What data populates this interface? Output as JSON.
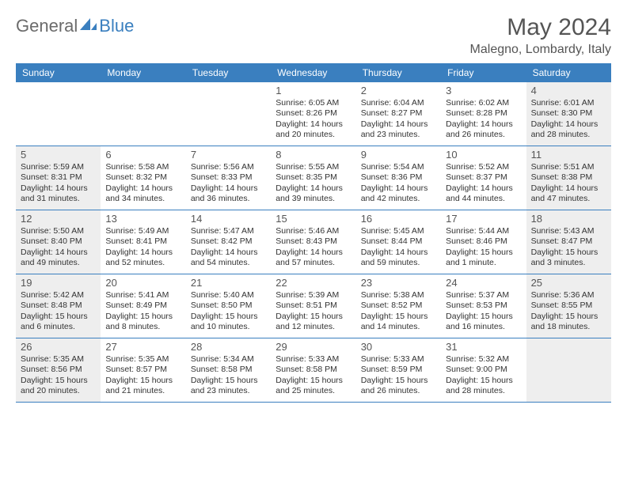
{
  "logo": {
    "text1": "General",
    "text2": "Blue"
  },
  "title": "May 2024",
  "location": "Malegno, Lombardy, Italy",
  "colors": {
    "header_bg": "#3a7fbf",
    "header_text": "#ffffff",
    "shade_bg": "#eeeeee",
    "border": "#3a7fbf",
    "title_color": "#555555",
    "logo_gray": "#6b6b6b",
    "logo_blue": "#3a7fbf"
  },
  "day_headers": [
    "Sunday",
    "Monday",
    "Tuesday",
    "Wednesday",
    "Thursday",
    "Friday",
    "Saturday"
  ],
  "weeks": [
    [
      {
        "num": "",
        "sunrise": "",
        "sunset": "",
        "daylight1": "",
        "daylight2": "",
        "shaded": false
      },
      {
        "num": "",
        "sunrise": "",
        "sunset": "",
        "daylight1": "",
        "daylight2": "",
        "shaded": false
      },
      {
        "num": "",
        "sunrise": "",
        "sunset": "",
        "daylight1": "",
        "daylight2": "",
        "shaded": false
      },
      {
        "num": "1",
        "sunrise": "Sunrise: 6:05 AM",
        "sunset": "Sunset: 8:26 PM",
        "daylight1": "Daylight: 14 hours",
        "daylight2": "and 20 minutes.",
        "shaded": false
      },
      {
        "num": "2",
        "sunrise": "Sunrise: 6:04 AM",
        "sunset": "Sunset: 8:27 PM",
        "daylight1": "Daylight: 14 hours",
        "daylight2": "and 23 minutes.",
        "shaded": false
      },
      {
        "num": "3",
        "sunrise": "Sunrise: 6:02 AM",
        "sunset": "Sunset: 8:28 PM",
        "daylight1": "Daylight: 14 hours",
        "daylight2": "and 26 minutes.",
        "shaded": false
      },
      {
        "num": "4",
        "sunrise": "Sunrise: 6:01 AM",
        "sunset": "Sunset: 8:30 PM",
        "daylight1": "Daylight: 14 hours",
        "daylight2": "and 28 minutes.",
        "shaded": true
      }
    ],
    [
      {
        "num": "5",
        "sunrise": "Sunrise: 5:59 AM",
        "sunset": "Sunset: 8:31 PM",
        "daylight1": "Daylight: 14 hours",
        "daylight2": "and 31 minutes.",
        "shaded": true
      },
      {
        "num": "6",
        "sunrise": "Sunrise: 5:58 AM",
        "sunset": "Sunset: 8:32 PM",
        "daylight1": "Daylight: 14 hours",
        "daylight2": "and 34 minutes.",
        "shaded": false
      },
      {
        "num": "7",
        "sunrise": "Sunrise: 5:56 AM",
        "sunset": "Sunset: 8:33 PM",
        "daylight1": "Daylight: 14 hours",
        "daylight2": "and 36 minutes.",
        "shaded": false
      },
      {
        "num": "8",
        "sunrise": "Sunrise: 5:55 AM",
        "sunset": "Sunset: 8:35 PM",
        "daylight1": "Daylight: 14 hours",
        "daylight2": "and 39 minutes.",
        "shaded": false
      },
      {
        "num": "9",
        "sunrise": "Sunrise: 5:54 AM",
        "sunset": "Sunset: 8:36 PM",
        "daylight1": "Daylight: 14 hours",
        "daylight2": "and 42 minutes.",
        "shaded": false
      },
      {
        "num": "10",
        "sunrise": "Sunrise: 5:52 AM",
        "sunset": "Sunset: 8:37 PM",
        "daylight1": "Daylight: 14 hours",
        "daylight2": "and 44 minutes.",
        "shaded": false
      },
      {
        "num": "11",
        "sunrise": "Sunrise: 5:51 AM",
        "sunset": "Sunset: 8:38 PM",
        "daylight1": "Daylight: 14 hours",
        "daylight2": "and 47 minutes.",
        "shaded": true
      }
    ],
    [
      {
        "num": "12",
        "sunrise": "Sunrise: 5:50 AM",
        "sunset": "Sunset: 8:40 PM",
        "daylight1": "Daylight: 14 hours",
        "daylight2": "and 49 minutes.",
        "shaded": true
      },
      {
        "num": "13",
        "sunrise": "Sunrise: 5:49 AM",
        "sunset": "Sunset: 8:41 PM",
        "daylight1": "Daylight: 14 hours",
        "daylight2": "and 52 minutes.",
        "shaded": false
      },
      {
        "num": "14",
        "sunrise": "Sunrise: 5:47 AM",
        "sunset": "Sunset: 8:42 PM",
        "daylight1": "Daylight: 14 hours",
        "daylight2": "and 54 minutes.",
        "shaded": false
      },
      {
        "num": "15",
        "sunrise": "Sunrise: 5:46 AM",
        "sunset": "Sunset: 8:43 PM",
        "daylight1": "Daylight: 14 hours",
        "daylight2": "and 57 minutes.",
        "shaded": false
      },
      {
        "num": "16",
        "sunrise": "Sunrise: 5:45 AM",
        "sunset": "Sunset: 8:44 PM",
        "daylight1": "Daylight: 14 hours",
        "daylight2": "and 59 minutes.",
        "shaded": false
      },
      {
        "num": "17",
        "sunrise": "Sunrise: 5:44 AM",
        "sunset": "Sunset: 8:46 PM",
        "daylight1": "Daylight: 15 hours",
        "daylight2": "and 1 minute.",
        "shaded": false
      },
      {
        "num": "18",
        "sunrise": "Sunrise: 5:43 AM",
        "sunset": "Sunset: 8:47 PM",
        "daylight1": "Daylight: 15 hours",
        "daylight2": "and 3 minutes.",
        "shaded": true
      }
    ],
    [
      {
        "num": "19",
        "sunrise": "Sunrise: 5:42 AM",
        "sunset": "Sunset: 8:48 PM",
        "daylight1": "Daylight: 15 hours",
        "daylight2": "and 6 minutes.",
        "shaded": true
      },
      {
        "num": "20",
        "sunrise": "Sunrise: 5:41 AM",
        "sunset": "Sunset: 8:49 PM",
        "daylight1": "Daylight: 15 hours",
        "daylight2": "and 8 minutes.",
        "shaded": false
      },
      {
        "num": "21",
        "sunrise": "Sunrise: 5:40 AM",
        "sunset": "Sunset: 8:50 PM",
        "daylight1": "Daylight: 15 hours",
        "daylight2": "and 10 minutes.",
        "shaded": false
      },
      {
        "num": "22",
        "sunrise": "Sunrise: 5:39 AM",
        "sunset": "Sunset: 8:51 PM",
        "daylight1": "Daylight: 15 hours",
        "daylight2": "and 12 minutes.",
        "shaded": false
      },
      {
        "num": "23",
        "sunrise": "Sunrise: 5:38 AM",
        "sunset": "Sunset: 8:52 PM",
        "daylight1": "Daylight: 15 hours",
        "daylight2": "and 14 minutes.",
        "shaded": false
      },
      {
        "num": "24",
        "sunrise": "Sunrise: 5:37 AM",
        "sunset": "Sunset: 8:53 PM",
        "daylight1": "Daylight: 15 hours",
        "daylight2": "and 16 minutes.",
        "shaded": false
      },
      {
        "num": "25",
        "sunrise": "Sunrise: 5:36 AM",
        "sunset": "Sunset: 8:55 PM",
        "daylight1": "Daylight: 15 hours",
        "daylight2": "and 18 minutes.",
        "shaded": true
      }
    ],
    [
      {
        "num": "26",
        "sunrise": "Sunrise: 5:35 AM",
        "sunset": "Sunset: 8:56 PM",
        "daylight1": "Daylight: 15 hours",
        "daylight2": "and 20 minutes.",
        "shaded": true
      },
      {
        "num": "27",
        "sunrise": "Sunrise: 5:35 AM",
        "sunset": "Sunset: 8:57 PM",
        "daylight1": "Daylight: 15 hours",
        "daylight2": "and 21 minutes.",
        "shaded": false
      },
      {
        "num": "28",
        "sunrise": "Sunrise: 5:34 AM",
        "sunset": "Sunset: 8:58 PM",
        "daylight1": "Daylight: 15 hours",
        "daylight2": "and 23 minutes.",
        "shaded": false
      },
      {
        "num": "29",
        "sunrise": "Sunrise: 5:33 AM",
        "sunset": "Sunset: 8:58 PM",
        "daylight1": "Daylight: 15 hours",
        "daylight2": "and 25 minutes.",
        "shaded": false
      },
      {
        "num": "30",
        "sunrise": "Sunrise: 5:33 AM",
        "sunset": "Sunset: 8:59 PM",
        "daylight1": "Daylight: 15 hours",
        "daylight2": "and 26 minutes.",
        "shaded": false
      },
      {
        "num": "31",
        "sunrise": "Sunrise: 5:32 AM",
        "sunset": "Sunset: 9:00 PM",
        "daylight1": "Daylight: 15 hours",
        "daylight2": "and 28 minutes.",
        "shaded": false
      },
      {
        "num": "",
        "sunrise": "",
        "sunset": "",
        "daylight1": "",
        "daylight2": "",
        "shaded": true
      }
    ]
  ]
}
